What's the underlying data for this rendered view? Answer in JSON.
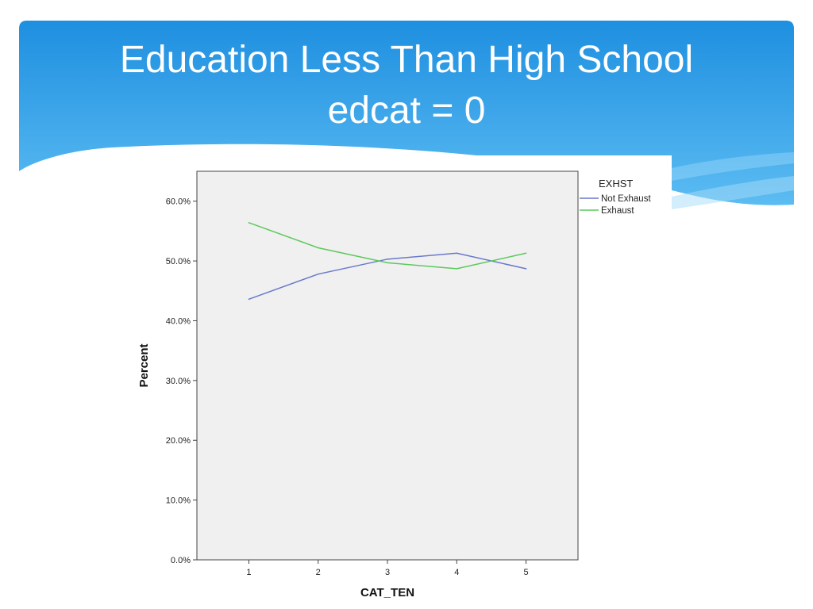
{
  "slide": {
    "title_line1": "Education Less Than High School",
    "title_line2": "edcat = 0",
    "banner_color": "#2e9be6"
  },
  "chart_data": {
    "type": "line",
    "xlabel": "CAT_TEN",
    "ylabel": "Percent",
    "categories": [
      "1",
      "2",
      "3",
      "4",
      "5"
    ],
    "ylim": [
      0,
      65
    ],
    "yticks": [
      0,
      10,
      20,
      30,
      40,
      50,
      60
    ],
    "ytick_labels": [
      "0.0%",
      "10.0%",
      "20.0%",
      "30.0%",
      "40.0%",
      "50.0%",
      "60.0%"
    ],
    "legend_title": "EXHST",
    "legend_position": "top-right, outside plot",
    "grid": false,
    "plot_background": "#f0f0f0",
    "series": [
      {
        "name": "Not Exhaust",
        "color": "#6a78cc",
        "values": [
          43.6,
          47.8,
          50.3,
          51.3,
          48.7
        ]
      },
      {
        "name": "Exhaust",
        "color": "#5cc95c",
        "values": [
          56.4,
          52.2,
          49.7,
          48.7,
          51.3
        ]
      }
    ]
  }
}
